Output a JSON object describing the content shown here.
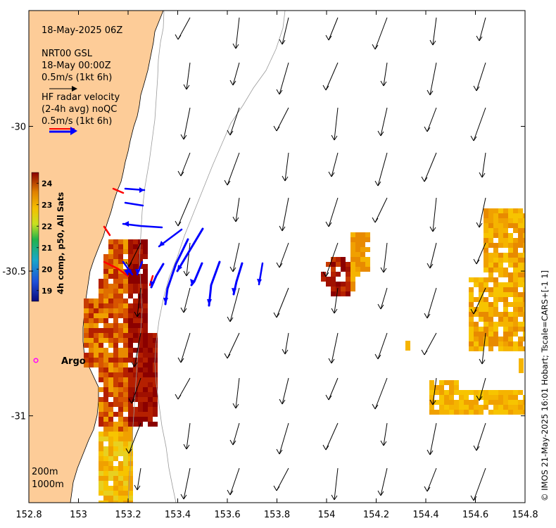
{
  "map": {
    "extent": {
      "lon_min": 152.8,
      "lon_max": 154.8,
      "lat_min": -31.3,
      "lat_max": -29.6
    },
    "x_ticks": [
      "152.8",
      "153",
      "153.2",
      "153.4",
      "153.6",
      "153.8",
      "154",
      "154.2",
      "154.4",
      "154.6",
      "154.8"
    ],
    "y_ticks": [
      "-30",
      "-30.5",
      "-31"
    ],
    "title_box": {
      "timestamp": "18-May-2025 06Z",
      "model_name": "NRT00 GSL",
      "model_time": "18-May 00:00Z",
      "model_scale": "0.5m/s (1kt 6h)",
      "radar_title": "HF radar velocity",
      "radar_avg": "(2-4h avg) noQC",
      "radar_scale": "0.5m/s (1kt 6h)"
    },
    "colorbar": {
      "label": "4h comp, p50, All Sats",
      "ticks": [
        "24",
        "23",
        "22",
        "21",
        "20",
        "19"
      ],
      "range": [
        18.5,
        24.5
      ]
    },
    "argo_label": "Argo",
    "contours": [
      "200m",
      "1000m"
    ],
    "credit": "© IMOS 21-May-2025 16:01 Hobart; Tscale=CARS+[-1 1]",
    "colors": {
      "land": "#fdcc98",
      "model_arrow": "#000000",
      "radar_arrow": "#0000ff",
      "radar_arrow_red": "#ff0000",
      "argo": "#ff00ff",
      "contour": "#999999"
    }
  }
}
